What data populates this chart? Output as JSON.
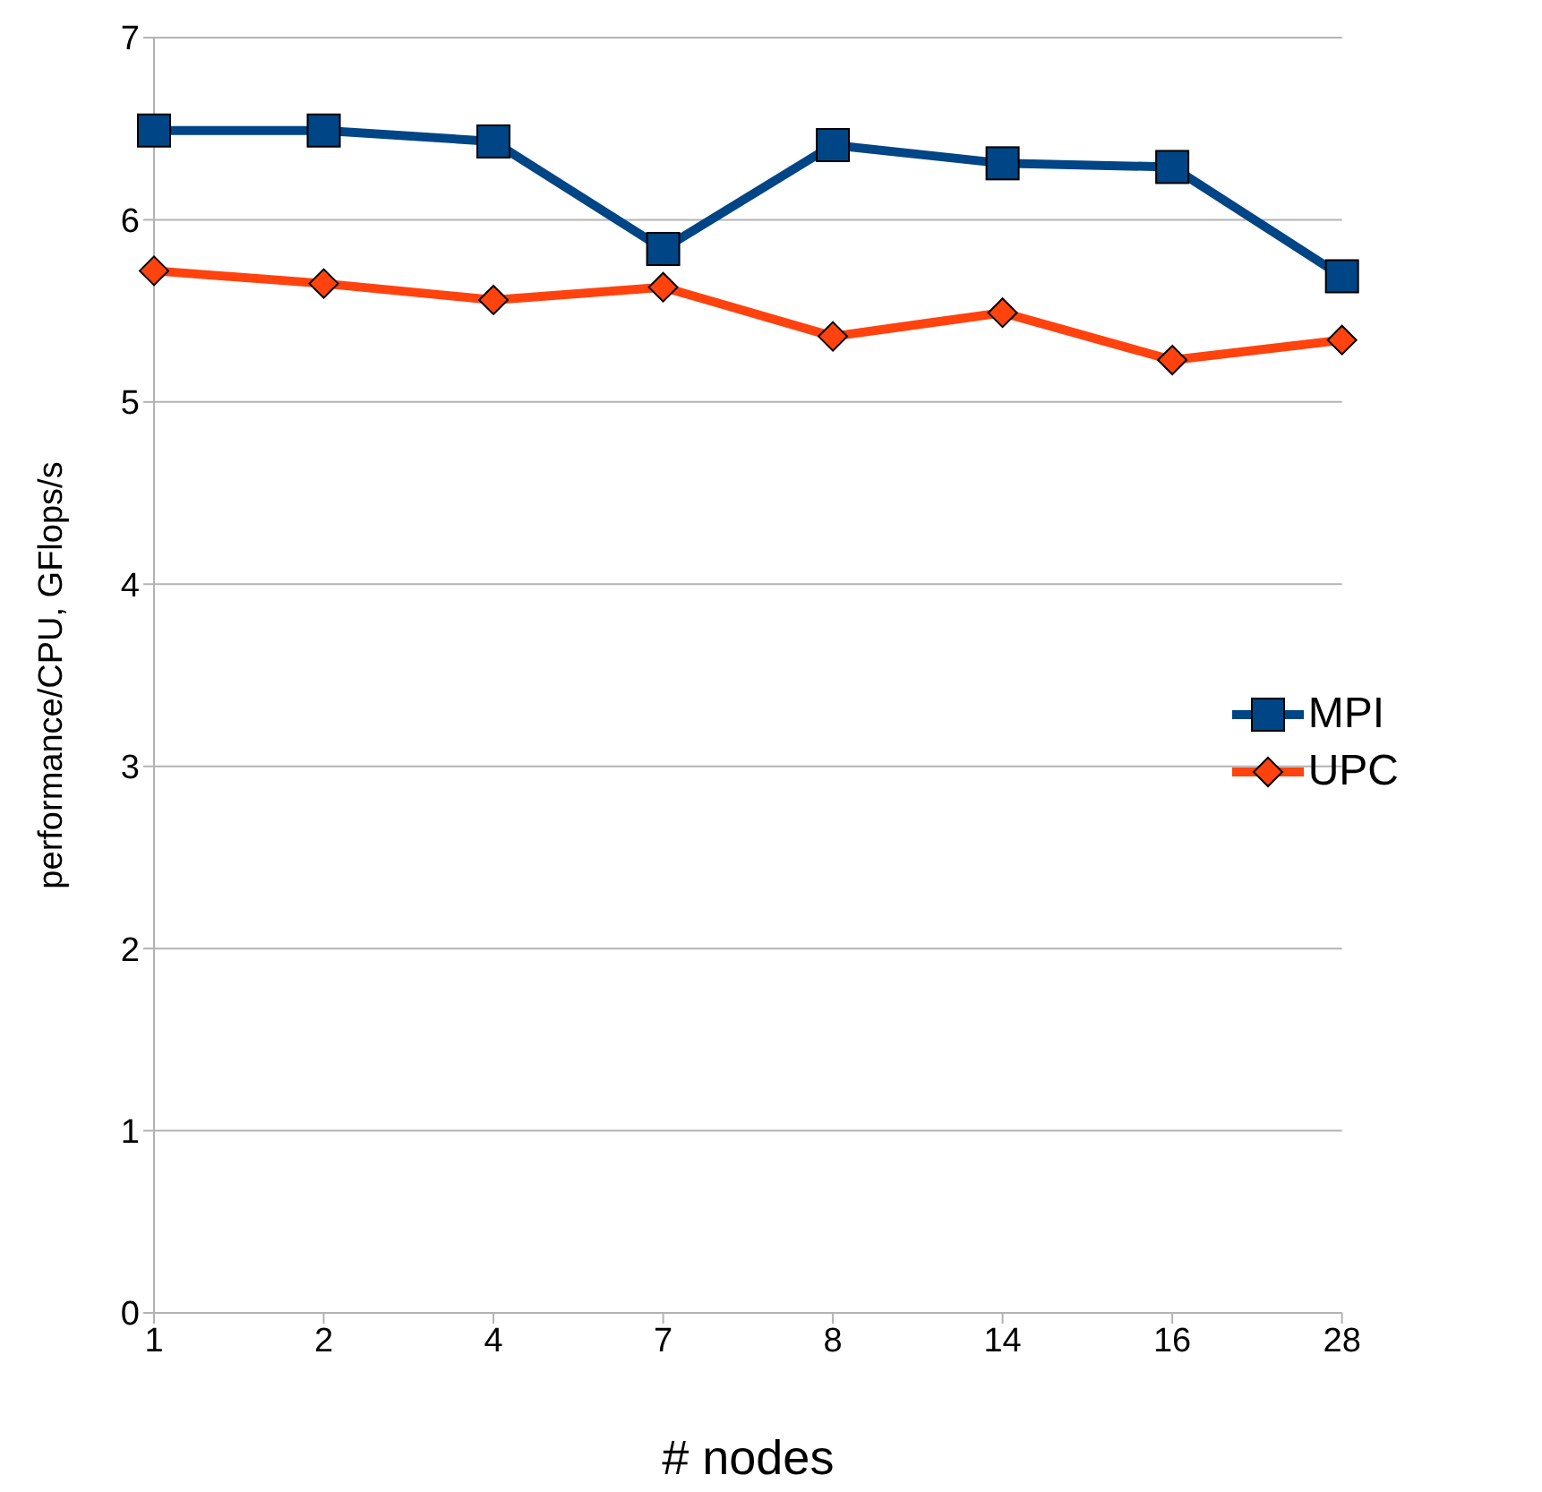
{
  "chart_data": {
    "type": "line",
    "xlabel": "# nodes",
    "ylabel": "performance/CPU, GFlops/s",
    "categories": [
      "1",
      "2",
      "4",
      "7",
      "8",
      "14",
      "16",
      "28"
    ],
    "series": [
      {
        "name": "MPI",
        "color": "#004586",
        "marker": "square",
        "values": [
          6.49,
          6.49,
          6.43,
          5.84,
          6.41,
          6.31,
          6.29,
          5.69
        ]
      },
      {
        "name": "UPC",
        "color": "#ff420e",
        "marker": "diamond",
        "values": [
          5.72,
          5.65,
          5.56,
          5.63,
          5.36,
          5.49,
          5.23,
          5.34
        ]
      }
    ],
    "ylim": [
      0,
      7
    ],
    "yticks": [
      0,
      1,
      2,
      3,
      4,
      5,
      6,
      7
    ],
    "grid": "y",
    "legend": "right"
  }
}
